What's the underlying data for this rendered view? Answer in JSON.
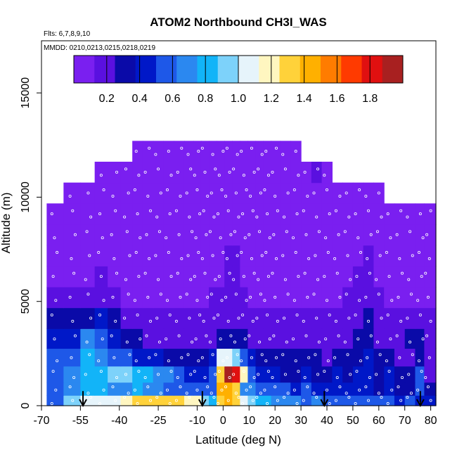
{
  "chart_data": {
    "type": "heatmap",
    "title": "ATOM2 Northbound CH3I_WAS",
    "flights_label": "Flts: 6,7,8,9,10",
    "dates_label": "MMDD: 0210,0213,0215,0218,0219",
    "xlabel": "Latitude (deg N)",
    "ylabel": "Altitude (m)",
    "xlim": [
      -70,
      82
    ],
    "ylim": [
      0,
      17500
    ],
    "x_ticks": [
      -70,
      -55,
      -40,
      -25,
      -10,
      0,
      10,
      20,
      30,
      40,
      50,
      60,
      70,
      80
    ],
    "y_ticks": [
      0,
      5000,
      10000,
      15000
    ],
    "colorbar": {
      "range": [
        0.0,
        2.0
      ],
      "ticks": [
        "0.2",
        "0.4",
        "0.6",
        "0.8",
        "1.0",
        "1.2",
        "1.4",
        "1.6",
        "1.8"
      ],
      "position": "top, inside plot"
    },
    "colors": [
      "#7a1ff0",
      "#5a10e0",
      "#0a0aa8",
      "#0018c8",
      "#1e58e8",
      "#2b88f0",
      "#12b4f8",
      "#7dd2fa",
      "#e6f4fb",
      "#fff6c0",
      "#ffd23a",
      "#ffb000",
      "#ff7c00",
      "#ff3a00",
      "#e01010",
      "#a82020"
    ],
    "arrows_at_latitude": [
      -54,
      -8,
      39,
      76
    ],
    "altitude_bands_m": [
      250,
      750,
      1500,
      2300,
      3200,
      4200,
      5200,
      6200,
      7200,
      8200,
      9200,
      10200,
      11200,
      12200
    ],
    "profile_latitudes": [
      -65,
      -58,
      -52,
      -47,
      -42,
      -37,
      -33,
      -29,
      -25,
      -21,
      -17,
      -13,
      -10,
      -7,
      -4,
      -1,
      2,
      5,
      8,
      11,
      14,
      17,
      20,
      24,
      28,
      32,
      36,
      40,
      44,
      48,
      52,
      56,
      60,
      64,
      68,
      72,
      76,
      79
    ],
    "ch3i_grid": [
      [
        0.5,
        0.9,
        1.0,
        1.0,
        1.1,
        1.15,
        1.25,
        1.3,
        1.3,
        1.3,
        1.25,
        1.2,
        1.2,
        0.9,
        0.85,
        1.3,
        1.4,
        1.35,
        1.0,
        0.9,
        0.8,
        0.75,
        0.7,
        0.7,
        0.65,
        0.6,
        0.7,
        0.6,
        0.55,
        0.55,
        0.6,
        0.55,
        0.5,
        0.5,
        0.45,
        0.6,
        0.45,
        0.4
      ],
      [
        0.55,
        0.7,
        0.85,
        0.75,
        0.7,
        0.65,
        0.8,
        0.7,
        0.65,
        0.6,
        0.6,
        0.55,
        0.6,
        0.6,
        0.6,
        1.4,
        1.45,
        1.3,
        0.7,
        0.65,
        0.6,
        0.55,
        0.5,
        0.5,
        0.45,
        0.5,
        0.45,
        0.4,
        0.45,
        0.4,
        0.45,
        0.4,
        0.35,
        0.4,
        0.35,
        0.3,
        0.55,
        0.35
      ],
      [
        0.6,
        0.7,
        0.75,
        0.85,
        0.95,
        0.9,
        0.8,
        0.85,
        0.7,
        0.65,
        0.6,
        0.45,
        0.4,
        0.4,
        0.6,
        1.3,
        1.9,
        1.8,
        1.2,
        0.6,
        0.45,
        0.4,
        0.4,
        0.35,
        0.35,
        0.4,
        0.35,
        0.3,
        0.4,
        0.35,
        0.4,
        0.45,
        0.35,
        0.4,
        0.3,
        0.25,
        0.5,
        0.2
      ],
      [
        0.5,
        0.6,
        0.75,
        0.7,
        0.55,
        0.5,
        0.45,
        0.4,
        0.4,
        0.35,
        0.35,
        0.3,
        0.25,
        0.25,
        0.4,
        1.0,
        1.1,
        0.95,
        0.5,
        0.4,
        0.3,
        0.3,
        0.3,
        0.25,
        0.3,
        0.35,
        0.25,
        0.2,
        0.25,
        0.3,
        0.35,
        0.4,
        0.25,
        0.3,
        0.2,
        0.2,
        0.3,
        0.2
      ],
      [
        0.4,
        0.45,
        0.65,
        0.55,
        0.4,
        0.3,
        0.25,
        0.2,
        0.2,
        0.2,
        0.18,
        0.18,
        0.16,
        0.18,
        0.22,
        0.3,
        0.35,
        0.3,
        0.25,
        0.2,
        0.18,
        0.18,
        0.16,
        0.16,
        0.18,
        0.2,
        0.18,
        0.16,
        0.18,
        0.2,
        0.25,
        0.3,
        0.2,
        0.22,
        0.18,
        0.25,
        0.25,
        0.2
      ],
      [
        0.3,
        0.25,
        0.35,
        0.45,
        0.3,
        0.2,
        0.18,
        0.16,
        0.15,
        0.15,
        0.15,
        0.16,
        0.14,
        0.14,
        0.16,
        0.18,
        0.2,
        0.18,
        0.16,
        0.14,
        0.14,
        0.14,
        0.13,
        0.13,
        0.14,
        0.15,
        0.14,
        0.13,
        0.14,
        0.16,
        0.2,
        0.3,
        0.18,
        0.16,
        0.14,
        0.15,
        0.18,
        0.15
      ],
      [
        0.15,
        0.14,
        0.18,
        0.22,
        0.14,
        0.12,
        0.1,
        0.1,
        0.1,
        0.1,
        0.1,
        0.12,
        0.11,
        0.12,
        0.13,
        0.14,
        0.16,
        0.15,
        0.13,
        0.12,
        0.11,
        0.11,
        0.11,
        0.1,
        0.11,
        0.12,
        0.11,
        0.1,
        0.11,
        0.13,
        0.15,
        0.18,
        0.14,
        0.12,
        0.11,
        0.1,
        0.12,
        0.12
      ],
      [
        0.12,
        0.1,
        0.12,
        0.14,
        0.11,
        0.1,
        0.09,
        0.09,
        0.09,
        0.09,
        0.09,
        0.1,
        0.1,
        0.1,
        0.11,
        0.12,
        0.14,
        0.14,
        0.12,
        0.11,
        0.1,
        0.1,
        0.09,
        0.09,
        0.1,
        0.1,
        0.1,
        0.09,
        0.1,
        0.11,
        0.13,
        0.15,
        0.12,
        0.11,
        0.1,
        0.09,
        0.11,
        0.1
      ],
      [
        0.1,
        0.09,
        0.1,
        0.12,
        0.1,
        0.09,
        0.08,
        0.08,
        0.08,
        0.08,
        0.08,
        0.09,
        0.09,
        0.09,
        0.1,
        0.11,
        0.13,
        0.13,
        0.11,
        0.1,
        0.09,
        0.09,
        0.08,
        0.08,
        0.09,
        0.09,
        0.09,
        0.08,
        0.09,
        0.1,
        0.11,
        0.13,
        0.1,
        0.1,
        0.09,
        0.08,
        0.09,
        0.09
      ],
      [
        0.09,
        0.08,
        0.09,
        0.1,
        0.09,
        0.08,
        0.07,
        0.07,
        0.07,
        0.07,
        0.07,
        0.08,
        0.08,
        0.08,
        0.09,
        0.1,
        0.12,
        0.12,
        0.1,
        0.09,
        0.08,
        0.08,
        0.07,
        0.07,
        0.08,
        0.08,
        0.08,
        0.07,
        0.08,
        0.09,
        0.1,
        0.12,
        0.09,
        0.09,
        0.08,
        0.07,
        0.08,
        0.08
      ],
      [
        0.08,
        0.07,
        0.08,
        0.09,
        0.08,
        0.07,
        0.07,
        0.06,
        0.06,
        0.07,
        0.07,
        0.07,
        0.07,
        0.08,
        0.08,
        0.09,
        0.11,
        0.11,
        0.09,
        0.08,
        0.08,
        0.07,
        0.07,
        0.07,
        0.07,
        0.08,
        0.07,
        0.07,
        0.07,
        0.08,
        0.09,
        0.1,
        0.08,
        0.08,
        0.07,
        0.07,
        0.07,
        0.07
      ],
      [
        null,
        0.07,
        0.07,
        0.08,
        0.07,
        0.07,
        0.06,
        0.06,
        0.06,
        0.06,
        0.06,
        0.07,
        0.07,
        0.07,
        0.08,
        0.08,
        0.1,
        0.1,
        0.08,
        0.08,
        0.07,
        0.07,
        0.07,
        0.06,
        0.07,
        0.07,
        0.07,
        0.06,
        0.07,
        0.07,
        0.08,
        0.09,
        0.07,
        null,
        null,
        null,
        null,
        null
      ],
      [
        null,
        null,
        null,
        0.07,
        0.07,
        0.06,
        0.06,
        0.06,
        0.06,
        0.06,
        0.06,
        0.07,
        0.07,
        0.07,
        0.07,
        0.08,
        0.09,
        0.09,
        0.08,
        0.07,
        0.07,
        0.07,
        0.06,
        0.06,
        0.07,
        0.09,
        0.14,
        0.07,
        null,
        null,
        null,
        null,
        null,
        null,
        null,
        null,
        null,
        null
      ],
      [
        null,
        null,
        null,
        null,
        null,
        null,
        0.07,
        0.07,
        0.07,
        0.07,
        0.07,
        0.07,
        0.07,
        0.07,
        0.07,
        0.07,
        0.08,
        0.08,
        0.07,
        0.07,
        0.07,
        0.07,
        0.07,
        0.07,
        0.07,
        null,
        null,
        null,
        null,
        null,
        null,
        null,
        null,
        null,
        null,
        null,
        null,
        null
      ]
    ]
  }
}
